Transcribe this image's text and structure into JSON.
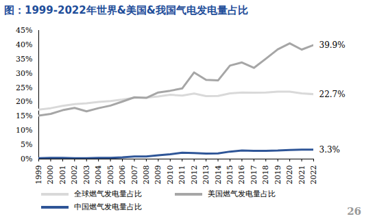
{
  "chart_data": {
    "type": "line",
    "title": "图：1999-2022年世界&美国&我国气电发电量占比",
    "x": [
      1999,
      2000,
      2001,
      2002,
      2003,
      2004,
      2005,
      2006,
      2007,
      2008,
      2009,
      2010,
      2011,
      2012,
      2013,
      2014,
      2015,
      2016,
      2017,
      2018,
      2019,
      2020,
      2021,
      2022
    ],
    "xlim": [
      1999,
      2022
    ],
    "xticks": [
      1999,
      2000,
      2001,
      2002,
      2003,
      2004,
      2005,
      2006,
      2007,
      2008,
      2009,
      2010,
      2011,
      2012,
      2013,
      2014,
      2015,
      2016,
      2017,
      2018,
      2019,
      2020,
      2021,
      2022
    ],
    "ylim": [
      0,
      45
    ],
    "yticks": [
      {
        "value": 0,
        "label": "0%"
      },
      {
        "value": 5,
        "label": "5%"
      },
      {
        "value": 10,
        "label": "10%"
      },
      {
        "value": 15,
        "label": "15%"
      },
      {
        "value": 20,
        "label": "20%"
      },
      {
        "value": 25,
        "label": "25%"
      },
      {
        "value": 30,
        "label": "30%"
      },
      {
        "value": 35,
        "label": "35%"
      },
      {
        "value": 40,
        "label": "40%"
      },
      {
        "value": 45,
        "label": "45%"
      }
    ],
    "grid": false,
    "legend": "bottom",
    "series": [
      {
        "name": "全球燃气发电量占比",
        "color": "#d9d9d9",
        "values": [
          17.3,
          17.8,
          18.6,
          19.2,
          19.5,
          20.0,
          20.3,
          20.8,
          21.4,
          21.5,
          21.9,
          22.5,
          22.2,
          22.9,
          22.0,
          22.1,
          23.0,
          23.3,
          23.2,
          23.3,
          23.6,
          23.6,
          23.0,
          22.7
        ],
        "value_labels": [
          null,
          null,
          null,
          null,
          null,
          null,
          null,
          null,
          null,
          null,
          null,
          null,
          null,
          null,
          null,
          null,
          null,
          null,
          null,
          null,
          null,
          null,
          null,
          "22.7%"
        ]
      },
      {
        "name": "美国燃气发电量占比",
        "color": "#a6a6a6",
        "values": [
          15.2,
          15.8,
          17.1,
          17.9,
          16.7,
          17.8,
          18.7,
          20.1,
          21.6,
          21.4,
          23.3,
          23.9,
          24.7,
          30.3,
          27.7,
          27.5,
          32.7,
          33.8,
          31.9,
          35.1,
          38.4,
          40.5,
          38.3,
          39.9
        ],
        "value_labels": [
          null,
          null,
          null,
          null,
          null,
          null,
          null,
          null,
          null,
          null,
          null,
          null,
          null,
          null,
          null,
          null,
          null,
          null,
          null,
          null,
          null,
          null,
          null,
          "39.9%"
        ]
      },
      {
        "name": "中国燃气发电量占比",
        "color": "#2e5597",
        "values": [
          0.3,
          0.4,
          0.4,
          0.3,
          0.3,
          0.4,
          0.4,
          0.6,
          0.9,
          0.9,
          1.3,
          1.7,
          2.2,
          2.1,
          1.9,
          2.0,
          2.6,
          3.0,
          2.9,
          2.9,
          3.0,
          3.2,
          3.3,
          3.3
        ],
        "value_labels": [
          null,
          null,
          null,
          null,
          null,
          null,
          null,
          null,
          null,
          null,
          null,
          null,
          null,
          null,
          null,
          null,
          null,
          null,
          null,
          null,
          null,
          null,
          null,
          "3.3%"
        ]
      }
    ],
    "annotations": [
      {
        "text": "26"
      }
    ]
  }
}
